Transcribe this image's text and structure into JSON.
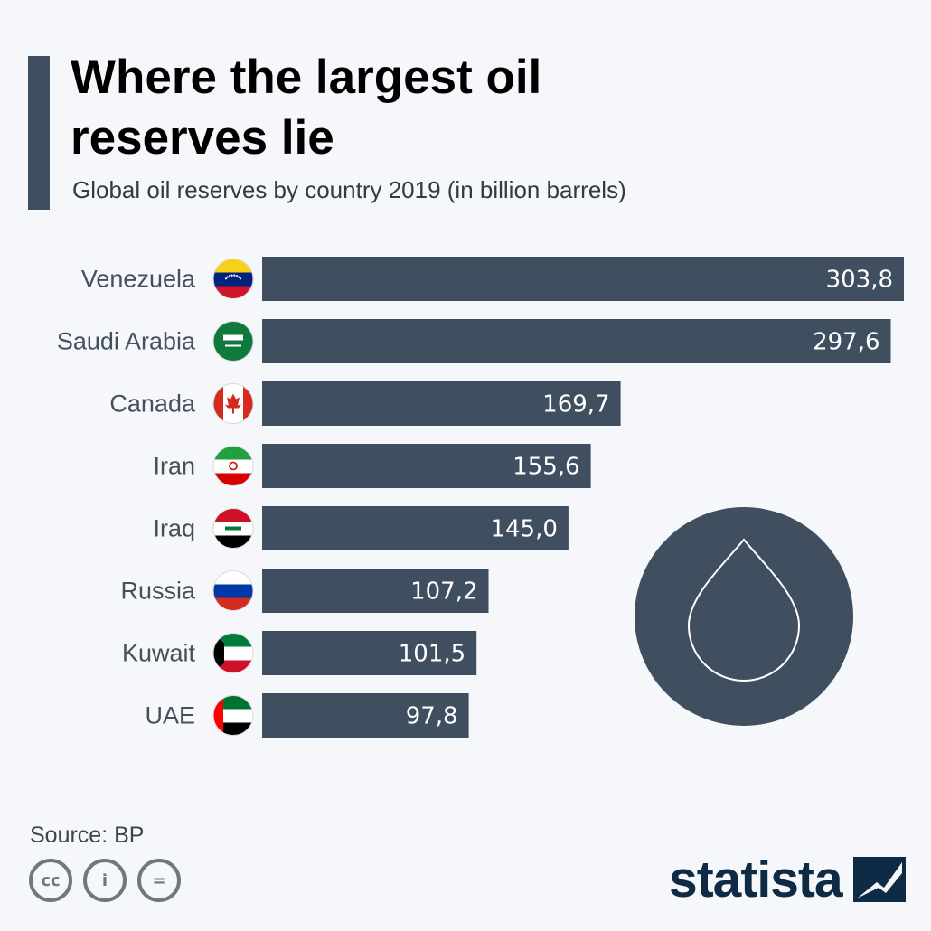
{
  "title": "Where the largest oil reserves lie",
  "subtitle": "Global oil reserves by country 2019 (in billion barrels)",
  "source": "Source: BP",
  "brand": "statista",
  "license_icons": [
    {
      "name": "cc-icon",
      "text": "cc"
    },
    {
      "name": "attribution-icon",
      "text": "i"
    },
    {
      "name": "no-derivatives-icon",
      "text": "="
    }
  ],
  "colors": {
    "bar": "#404f5f",
    "accent": "#404f5f",
    "brand": "#0f2a44"
  },
  "chart_data": {
    "type": "bar",
    "orientation": "horizontal",
    "categories": [
      "Venezuela",
      "Saudi Arabia",
      "Canada",
      "Iran",
      "Iraq",
      "Russia",
      "Kuwait",
      "UAE"
    ],
    "values": [
      303.8,
      297.6,
      169.7,
      155.6,
      145.0,
      107.2,
      101.5,
      97.8
    ],
    "value_labels": [
      "303,8",
      "297,6",
      "169,7",
      "155,6",
      "145,0",
      "107,2",
      "101,5",
      "97,8"
    ],
    "flags": [
      "venezuela-flag-icon",
      "saudi-arabia-flag-icon",
      "canada-flag-icon",
      "iran-flag-icon",
      "iraq-flag-icon",
      "russia-flag-icon",
      "kuwait-flag-icon",
      "uae-flag-icon"
    ],
    "title": "Where the largest oil reserves lie",
    "subtitle": "Global oil reserves by country 2019 (in billion barrels)",
    "xlim": [
      0,
      303.8
    ],
    "grid": false,
    "legend": "none",
    "decoration": "oil-drop-icon"
  }
}
